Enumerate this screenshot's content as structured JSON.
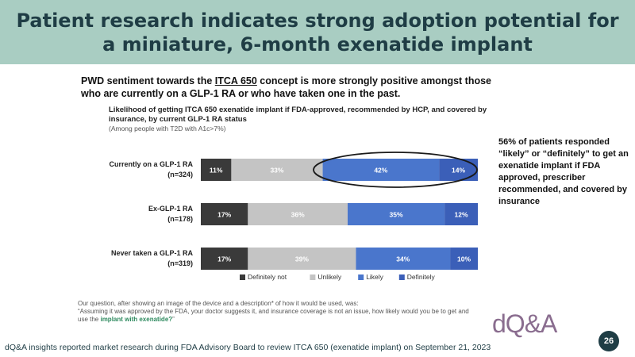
{
  "slide": {
    "title_lines": [
      "Patient research indicates strong adoption potential for",
      "a miniature, 6-month exenatide implant"
    ],
    "subtitle_pre": "PWD sentiment towards the ",
    "subtitle_hl": "ITCA 650",
    "subtitle_post": " concept is more strongly positive amongst those who are currently on a GLP-1 RA or who have taken one in the past.",
    "callout": "56% of patients responded “likely” or “definitely” to get an exenatide implant if FDA approved, prescriber recommended, and covered by insurance",
    "footnote_line1": "Our question, after showing an image of the device and a description* of how it would be used, was:",
    "footnote_line2": "“Assuming it was approved by the FDA, your doctor suggests it, and insurance coverage is not an issue, how likely would you be to get and use the ",
    "footnote_em": "implant with exenatide?",
    "footnote_end": "”",
    "logo": "dQ&A",
    "page_number": "26",
    "source": "dQ&A insights reported market research during FDA Advisory Board to review ITCA 650 (exenatide implant) on September 21, 2023"
  },
  "chart_data": {
    "type": "bar",
    "orientation": "horizontal-stacked-100",
    "title": "Likelihood of getting ITCA 650 exenatide implant if FDA-approved, recommended by HCP, and covered by insurance, by current GLP-1 RA status",
    "subtitle": "(Among people with T2D with A1c>7%)",
    "categories": [
      {
        "label": "Currently on a GLP-1 RA",
        "n": "(n=324)"
      },
      {
        "label": "Ex-GLP-1 RA",
        "n": "(n=178)"
      },
      {
        "label": "Never taken a GLP-1 RA",
        "n": "(n=319)"
      }
    ],
    "series": [
      {
        "name": "Definitely not",
        "color": "#3a3a3a",
        "values": [
          11,
          17,
          17
        ]
      },
      {
        "name": "Unlikely",
        "color": "#c4c4c4",
        "values": [
          33,
          36,
          39
        ]
      },
      {
        "name": "Likely",
        "color": "#4a76cc",
        "values": [
          42,
          35,
          34
        ]
      },
      {
        "name": "Definitely",
        "color": "#3b5fb8",
        "values": [
          14,
          12,
          10
        ]
      }
    ],
    "xlim": [
      0,
      100
    ],
    "legend": "bottom"
  }
}
